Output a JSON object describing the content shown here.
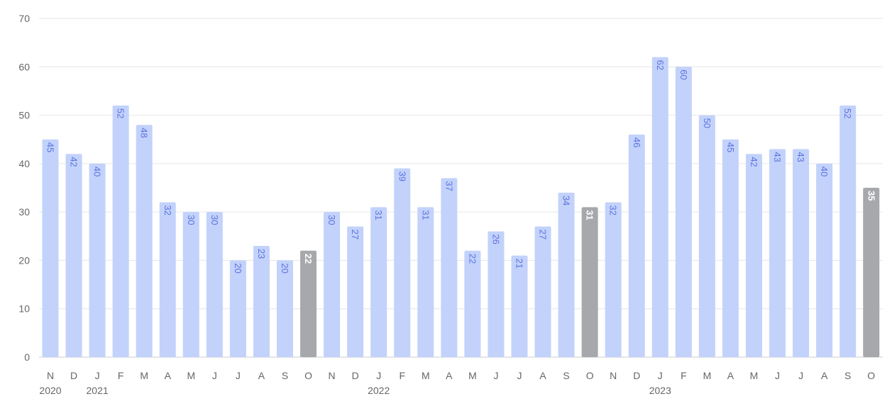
{
  "chart_data": {
    "type": "bar",
    "title": "",
    "xlabel": "",
    "ylabel": "",
    "ylim": [
      0,
      70
    ],
    "yticks": [
      0,
      10,
      20,
      30,
      40,
      50,
      60,
      70
    ],
    "grid": true,
    "categories": [
      "N",
      "D",
      "J",
      "F",
      "M",
      "A",
      "M",
      "J",
      "J",
      "A",
      "S",
      "O",
      "N",
      "D",
      "J",
      "F",
      "M",
      "A",
      "M",
      "J",
      "J",
      "A",
      "S",
      "O",
      "N",
      "D",
      "J",
      "F",
      "M",
      "A",
      "M",
      "J",
      "J",
      "A",
      "S",
      "O"
    ],
    "year_labels": [
      {
        "index": 0,
        "text": "2020"
      },
      {
        "index": 2,
        "text": "2021"
      },
      {
        "index": 14,
        "text": "2022"
      },
      {
        "index": 26,
        "text": "2023"
      }
    ],
    "values": [
      45,
      42,
      40,
      52,
      48,
      32,
      30,
      30,
      20,
      23,
      20,
      22,
      30,
      27,
      31,
      39,
      31,
      37,
      22,
      26,
      21,
      27,
      34,
      31,
      32,
      46,
      62,
      60,
      50,
      45,
      42,
      43,
      43,
      40,
      52,
      35
    ],
    "highlighted_indices": [
      11,
      23,
      35
    ],
    "colors": {
      "bar": "#c2d2fb",
      "bar_highlight": "#a7a8ab",
      "label": "#5d72e0",
      "label_highlight": "#ffffff",
      "grid": "#e6e6e6",
      "axis": "#cccccc"
    }
  }
}
